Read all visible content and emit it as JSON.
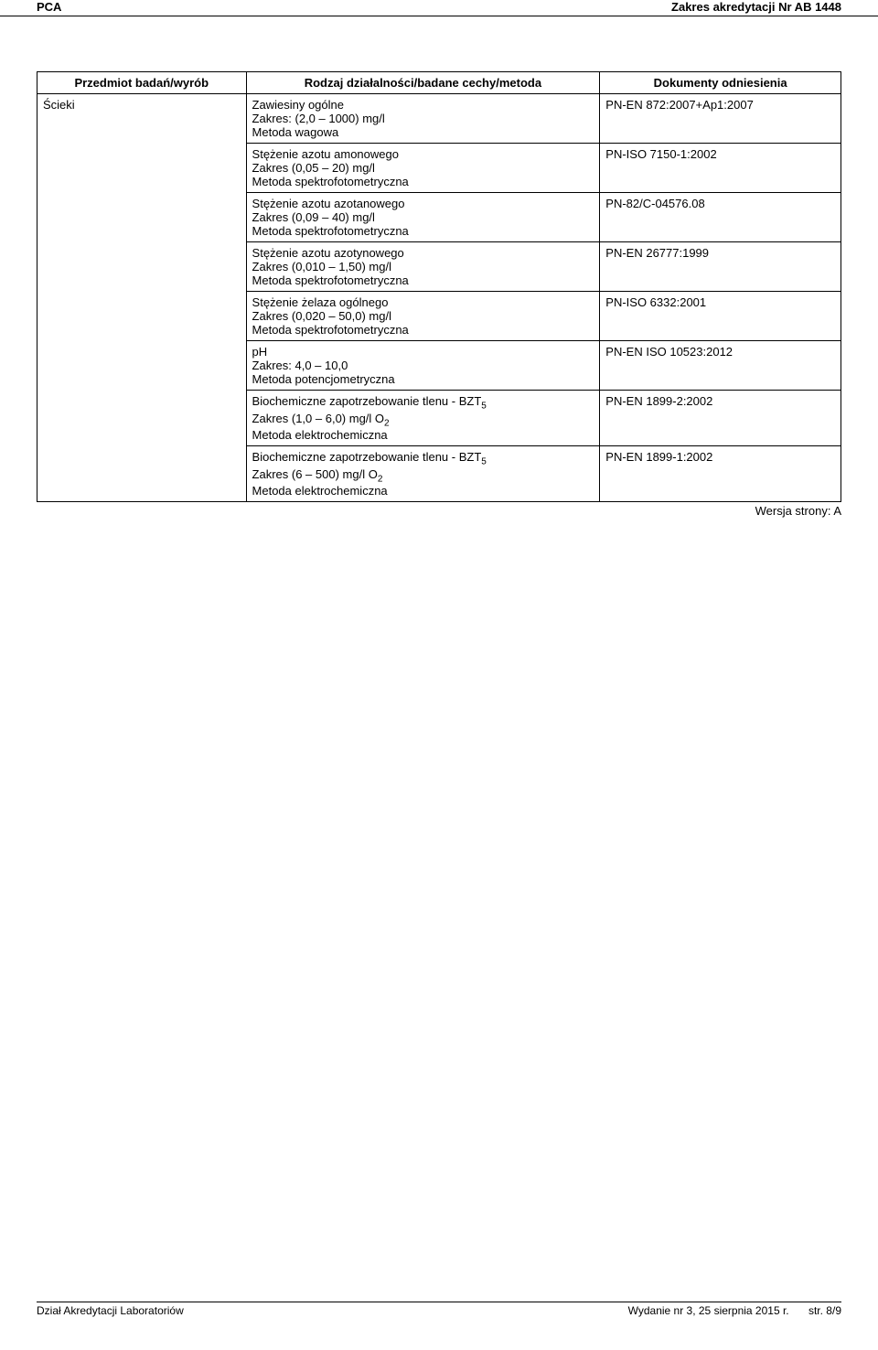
{
  "header": {
    "left": "PCA",
    "right": "Zakres akredytacji Nr AB 1448"
  },
  "table": {
    "headers": {
      "col1": "Przedmiot badań/wyrób",
      "col2": "Rodzaj działalności/badane cechy/metoda",
      "col3": "Dokumenty odniesienia"
    },
    "subject": "Ścieki",
    "rows": [
      {
        "activity": "Zawiesiny ogólne\nZakres: (2,0 – 1000) mg/l\nMetoda wagowa",
        "doc": "PN-EN 872:2007+Ap1:2007"
      },
      {
        "activity": "Stężenie azotu amonowego\nZakres (0,05 – 20) mg/l\nMetoda spektrofotometryczna",
        "doc": "PN-ISO 7150-1:2002"
      },
      {
        "activity": "Stężenie azotu azotanowego\nZakres (0,09 – 40) mg/l\nMetoda spektrofotometryczna",
        "doc": "PN-82/C-04576.08"
      },
      {
        "activity": "Stężenie azotu azotynowego\nZakres (0,010 – 1,50) mg/l\nMetoda spektrofotometryczna",
        "doc": "PN-EN 26777:1999"
      },
      {
        "activity": "Stężenie żelaza ogólnego\nZakres (0,020 – 50,0) mg/l\nMetoda spektrofotometryczna",
        "doc": "PN-ISO 6332:2001"
      },
      {
        "activity": "pH\nZakres: 4,0 – 10,0\nMetoda potencjometryczna",
        "doc": "PN-EN ISO 10523:2012"
      },
      {
        "activity": "Biochemiczne zapotrzebowanie tlenu - BZT₅\nZakres (1,0 – 6,0) mg/l O₂\nMetoda elektrochemiczna",
        "doc": "PN-EN 1899-2:2002"
      },
      {
        "activity": "Biochemiczne zapotrzebowanie tlenu - BZT₅\nZakres (6 – 500) mg/l O₂\nMetoda elektrochemiczna",
        "doc": "PN-EN 1899-1:2002"
      }
    ]
  },
  "version": "Wersja strony: A",
  "footer": {
    "left": "Dział Akredytacji Laboratoriów",
    "center": "Wydanie nr 3, 25 sierpnia 2015 r.",
    "right": "str. 8/9"
  }
}
